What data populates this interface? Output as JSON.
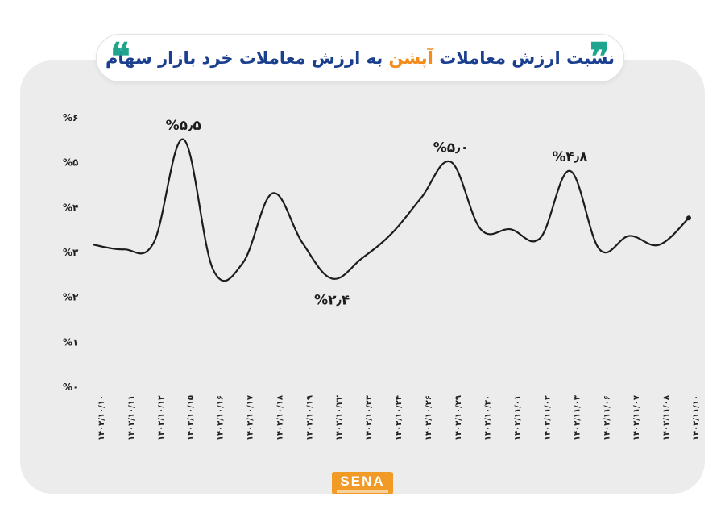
{
  "title": {
    "part1": "نسبت ارزش معاملات",
    "part2": "آپشن",
    "part3": "به ارزش معاملات خرد بازار سهام",
    "color_main": "#1b3f8f",
    "color_highlight": "#f28c1a"
  },
  "quote_color": "#1fa58e",
  "logo": {
    "text": "SENA",
    "color": "#f29a26"
  },
  "chart_data": {
    "type": "line",
    "x": [
      "۱۴۰۳/۱۰/۱۰",
      "۱۴۰۳/۱۰/۱۱",
      "۱۴۰۳/۱۰/۱۲",
      "۱۴۰۳/۱۰/۱۵",
      "۱۴۰۳/۱۰/۱۶",
      "۱۴۰۳/۱۰/۱۷",
      "۱۴۰۳/۱۰/۱۸",
      "۱۴۰۳/۱۰/۱۹",
      "۱۴۰۳/۱۰/۲۲",
      "۱۴۰۳/۱۰/۲۳",
      "۱۴۰۳/۱۰/۲۴",
      "۱۴۰۳/۱۰/۲۶",
      "۱۴۰۳/۱۰/۲۹",
      "۱۴۰۳/۱۰/۳۰",
      "۱۴۰۳/۱۱/۰۱",
      "۱۴۰۳/۱۱/۰۲",
      "۱۴۰۳/۱۱/۰۳",
      "۱۴۰۳/۱۱/۰۶",
      "۱۴۰۳/۱۱/۰۷",
      "۱۴۰۳/۱۱/۰۸",
      "۱۴۰۳/۱۱/۱۰"
    ],
    "y": [
      3.15,
      3.05,
      3.2,
      5.5,
      2.6,
      2.75,
      4.3,
      3.2,
      2.4,
      2.85,
      3.4,
      4.2,
      5.0,
      3.5,
      3.5,
      3.3,
      4.8,
      3.05,
      3.35,
      3.15,
      3.75
    ],
    "ylim": [
      0,
      6
    ],
    "yticks": [
      0,
      1,
      2,
      3,
      4,
      5,
      6
    ],
    "ytick_labels": [
      "%۰",
      "%۱",
      "%۲",
      "%۳",
      "%۴",
      "%۵",
      "%۶"
    ],
    "annotations": [
      {
        "index": 3,
        "text": "%۵٫۵",
        "position": "above"
      },
      {
        "index": 8,
        "text": "%۲٫۴",
        "position": "below"
      },
      {
        "index": 12,
        "text": "%۵٫۰",
        "position": "above"
      },
      {
        "index": 16,
        "text": "%۴٫۸",
        "position": "above"
      }
    ],
    "line_color": "#1c1c1c",
    "grid": false,
    "legend": "none"
  }
}
